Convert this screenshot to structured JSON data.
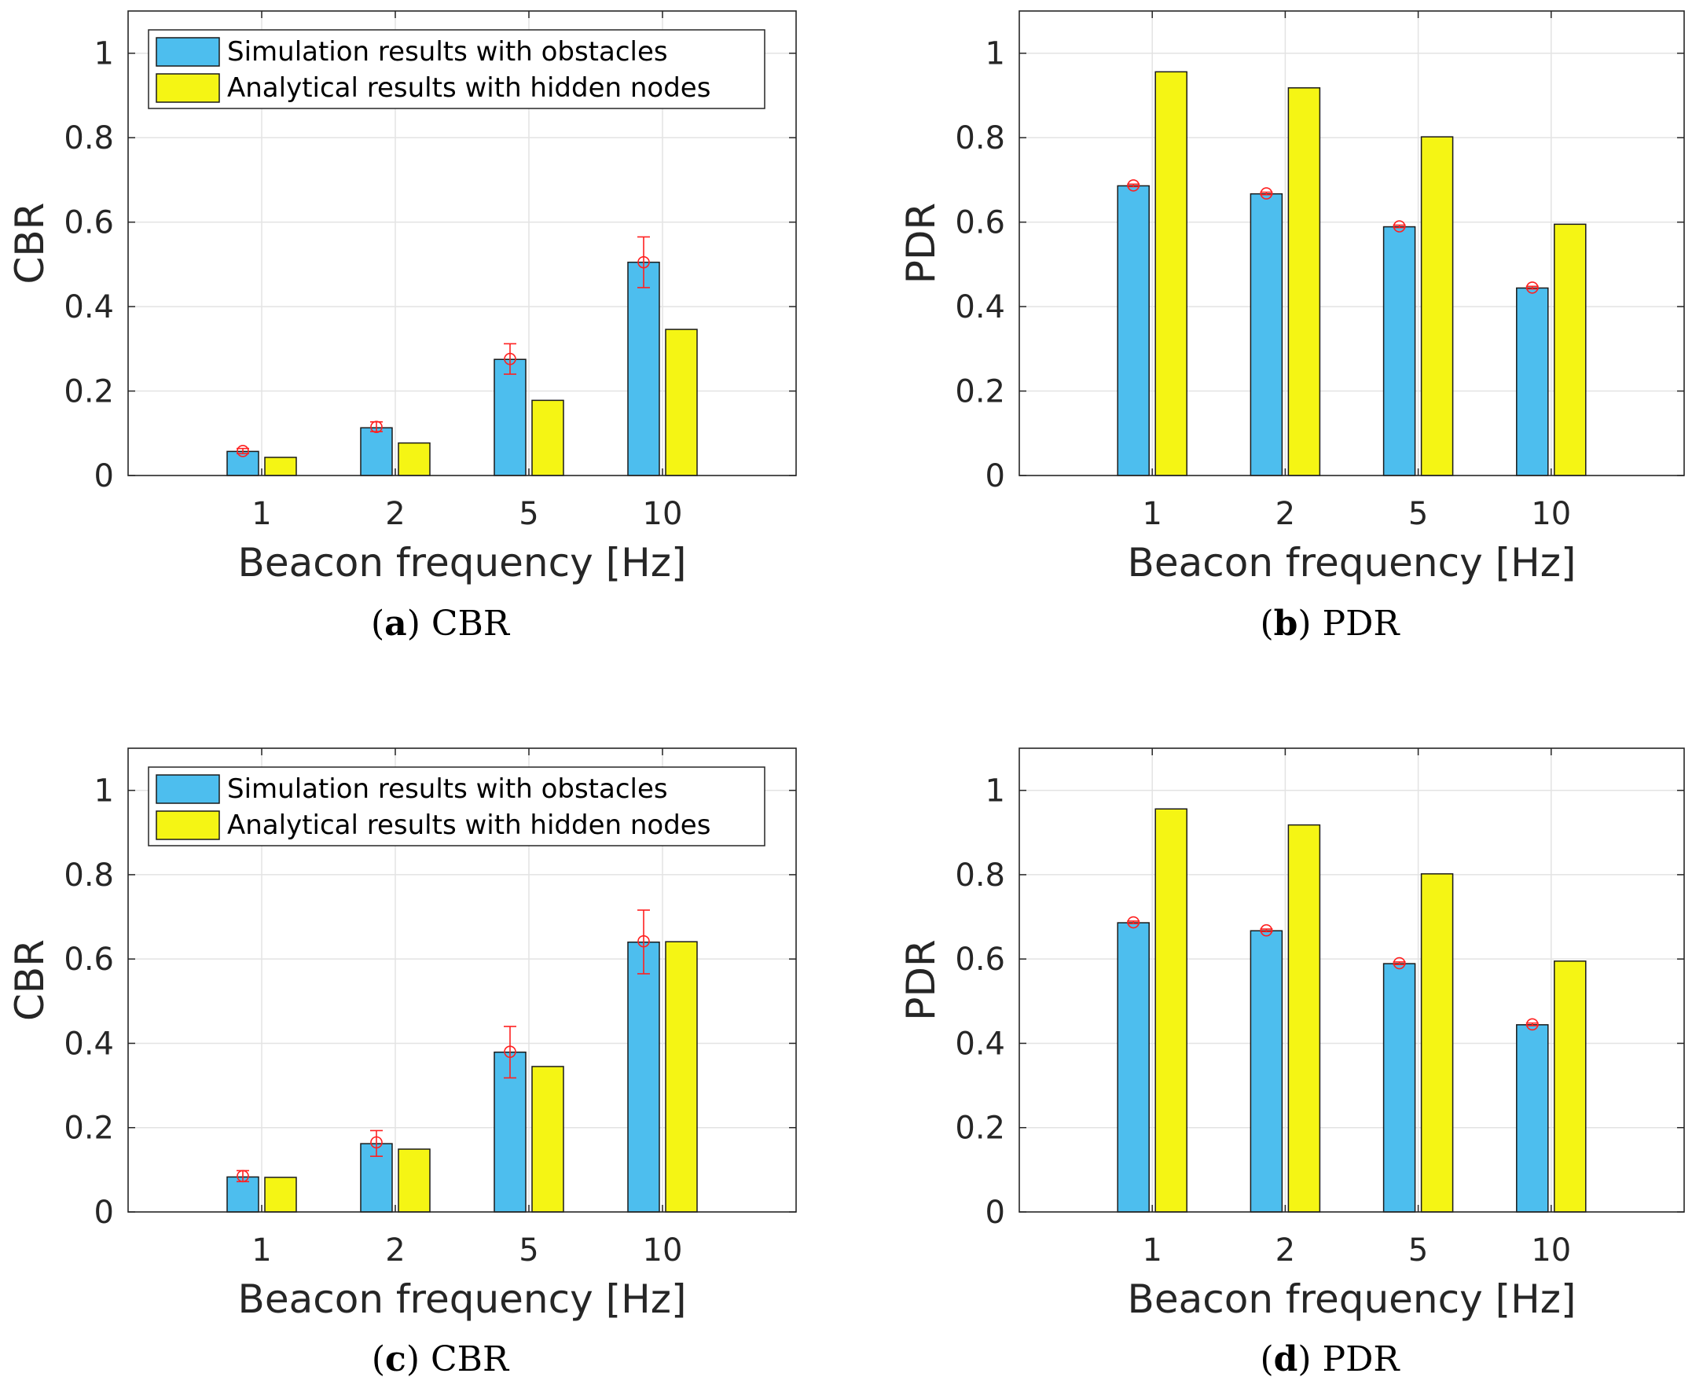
{
  "chart_data": [
    {
      "type": "bar",
      "caption_letter": "a",
      "caption_text": "CBR",
      "categories": [
        "1",
        "2",
        "5",
        "10"
      ],
      "xlabel": "Beacon frequency [Hz]",
      "ylabel": "CBR",
      "ylim": [
        0,
        1.1
      ],
      "yticks": [
        "0",
        "0.2",
        "0.4",
        "0.6",
        "0.8",
        "1"
      ],
      "grid": true,
      "legend_position": "top-left",
      "series": [
        {
          "name": "Simulation results with obstacles",
          "color": "#4dbeee",
          "values": [
            0.057,
            0.113,
            0.275,
            0.505
          ]
        },
        {
          "name": "Analytical results with hidden nodes",
          "color": "#f5f514",
          "values": [
            0.043,
            0.077,
            0.178,
            0.346
          ]
        }
      ],
      "errorbars": [
        {
          "mean": 0.058,
          "low": 0.052,
          "high": 0.064
        },
        {
          "mean": 0.115,
          "low": 0.104,
          "high": 0.127
        },
        {
          "mean": 0.276,
          "low": 0.24,
          "high": 0.312
        },
        {
          "mean": 0.505,
          "low": 0.445,
          "high": 0.565
        }
      ]
    },
    {
      "type": "bar",
      "caption_letter": "b",
      "caption_text": "PDR",
      "categories": [
        "1",
        "2",
        "5",
        "10"
      ],
      "xlabel": "Beacon frequency [Hz]",
      "ylabel": "PDR",
      "ylim": [
        0,
        1.1
      ],
      "yticks": [
        "0",
        "0.2",
        "0.4",
        "0.6",
        "0.8",
        "1"
      ],
      "grid": true,
      "legend_position": "none",
      "series": [
        {
          "name": "Simulation results with obstacles",
          "color": "#4dbeee",
          "values": [
            0.686,
            0.667,
            0.589,
            0.444
          ]
        },
        {
          "name": "Analytical results with hidden nodes",
          "color": "#f5f514",
          "values": [
            0.956,
            0.918,
            0.802,
            0.595
          ]
        }
      ],
      "errorbars": [
        {
          "mean": 0.687,
          "low": 0.684,
          "high": 0.69
        },
        {
          "mean": 0.668,
          "low": 0.665,
          "high": 0.671
        },
        {
          "mean": 0.59,
          "low": 0.587,
          "high": 0.593
        },
        {
          "mean": 0.445,
          "low": 0.442,
          "high": 0.448
        }
      ]
    },
    {
      "type": "bar",
      "caption_letter": "c",
      "caption_text": "CBR",
      "categories": [
        "1",
        "2",
        "5",
        "10"
      ],
      "xlabel": "Beacon frequency [Hz]",
      "ylabel": "CBR",
      "ylim": [
        0,
        1.1
      ],
      "yticks": [
        "0",
        "0.2",
        "0.4",
        "0.6",
        "0.8",
        "1"
      ],
      "grid": true,
      "legend_position": "top-left",
      "series": [
        {
          "name": "Simulation results with obstacles",
          "color": "#4dbeee",
          "values": [
            0.083,
            0.162,
            0.379,
            0.64
          ]
        },
        {
          "name": "Analytical results with hidden nodes",
          "color": "#f5f514",
          "values": [
            0.082,
            0.149,
            0.345,
            0.641
          ]
        }
      ],
      "errorbars": [
        {
          "mean": 0.085,
          "low": 0.072,
          "high": 0.098
        },
        {
          "mean": 0.165,
          "low": 0.132,
          "high": 0.193
        },
        {
          "mean": 0.38,
          "low": 0.318,
          "high": 0.44
        },
        {
          "mean": 0.642,
          "low": 0.565,
          "high": 0.716
        }
      ]
    },
    {
      "type": "bar",
      "caption_letter": "d",
      "caption_text": "PDR",
      "categories": [
        "1",
        "2",
        "5",
        "10"
      ],
      "xlabel": "Beacon frequency [Hz]",
      "ylabel": "PDR",
      "ylim": [
        0,
        1.1
      ],
      "yticks": [
        "0",
        "0.2",
        "0.4",
        "0.6",
        "0.8",
        "1"
      ],
      "grid": true,
      "legend_position": "none",
      "series": [
        {
          "name": "Simulation results with obstacles",
          "color": "#4dbeee",
          "values": [
            0.686,
            0.667,
            0.589,
            0.444
          ]
        },
        {
          "name": "Analytical results with hidden nodes",
          "color": "#f5f514",
          "values": [
            0.956,
            0.918,
            0.802,
            0.595
          ]
        }
      ],
      "errorbars": [
        {
          "mean": 0.687,
          "low": 0.684,
          "high": 0.69
        },
        {
          "mean": 0.668,
          "low": 0.665,
          "high": 0.671
        },
        {
          "mean": 0.59,
          "low": 0.587,
          "high": 0.593
        },
        {
          "mean": 0.445,
          "low": 0.442,
          "high": 0.448
        }
      ]
    }
  ]
}
